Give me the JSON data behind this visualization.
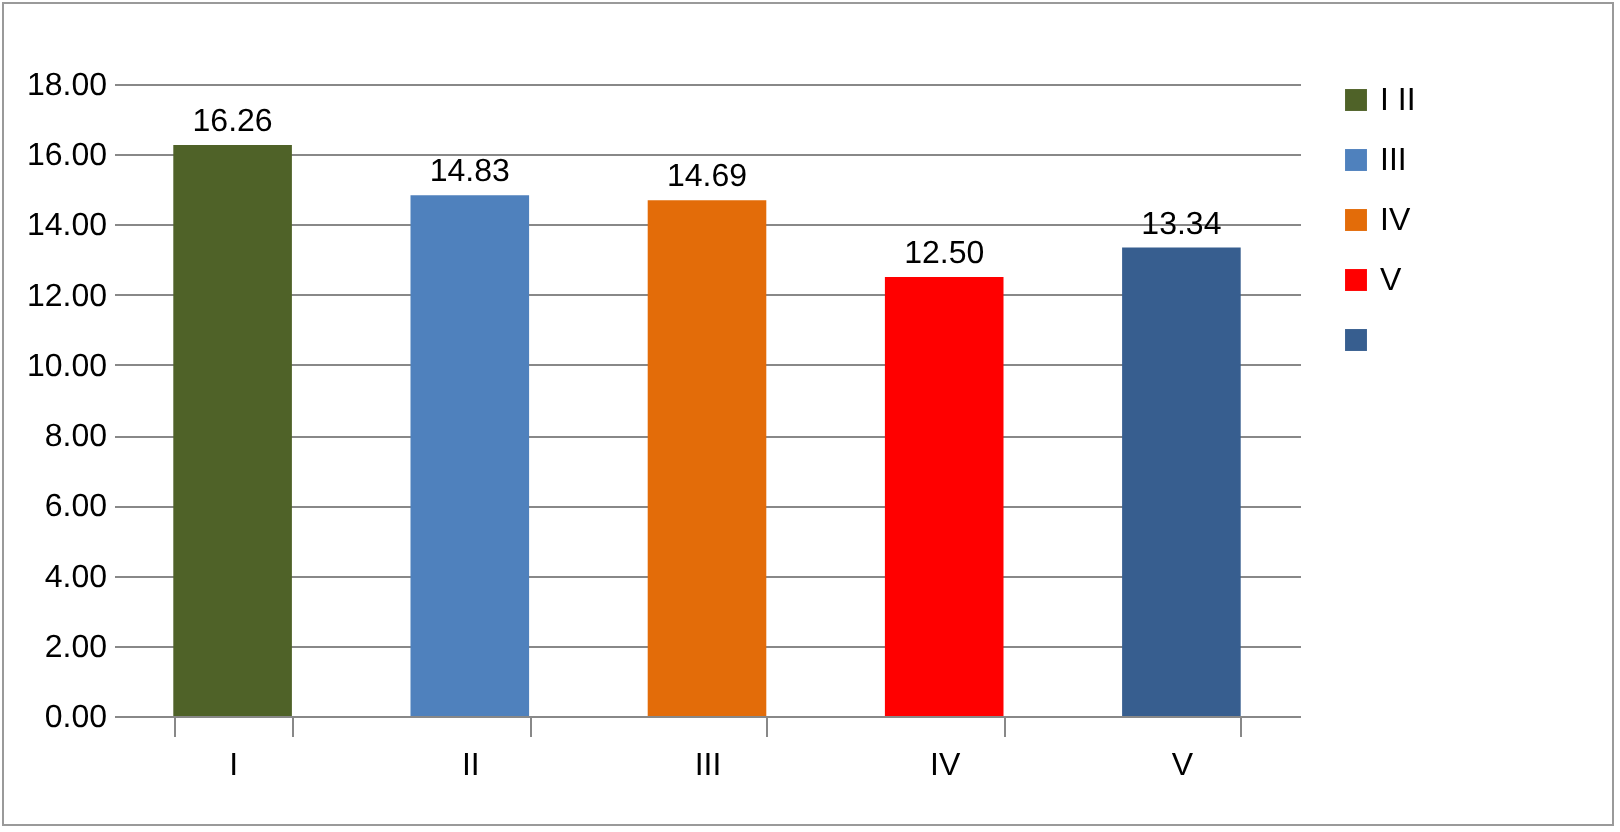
{
  "chart_data": {
    "type": "bar",
    "categories": [
      "I",
      "II",
      "III",
      "IV",
      "V"
    ],
    "series": [
      {
        "name": "I II",
        "color": "#4f6228",
        "values": [
          16.26,
          null,
          null,
          null,
          null
        ],
        "value_labels": [
          "16.26",
          null,
          null,
          null,
          null
        ]
      },
      {
        "name": "III",
        "color": "#4f81bd",
        "values": [
          null,
          14.83,
          null,
          null,
          null
        ],
        "value_labels": [
          null,
          "14.83",
          null,
          null,
          null
        ]
      },
      {
        "name": "IV",
        "color": "#e36c09",
        "values": [
          null,
          null,
          14.69,
          null,
          null
        ],
        "value_labels": [
          null,
          null,
          "14.69",
          null,
          null
        ]
      },
      {
        "name": "V",
        "color": "#ff0000",
        "values": [
          null,
          null,
          null,
          12.5,
          null
        ],
        "value_labels": [
          null,
          null,
          null,
          "12.50",
          null
        ]
      },
      {
        "color": "#375e8f",
        "values": [
          null,
          null,
          null,
          null,
          13.34
        ],
        "value_labels": [
          null,
          null,
          null,
          null,
          "13.34"
        ]
      }
    ],
    "ylim": [
      0,
      18
    ],
    "yticks": [
      {
        "value": 0,
        "label": "0.00"
      },
      {
        "value": 2,
        "label": "2.00"
      },
      {
        "value": 4,
        "label": "4.00"
      },
      {
        "value": 6,
        "label": "6.00"
      },
      {
        "value": 8,
        "label": "8.00"
      },
      {
        "value": 10,
        "label": "10.00"
      },
      {
        "value": 12,
        "label": "12.00"
      },
      {
        "value": 14,
        "label": "14.00"
      },
      {
        "value": 16,
        "label": "16.00"
      },
      {
        "value": 18,
        "label": "18.00"
      }
    ],
    "grid": "y",
    "legend": "right"
  }
}
